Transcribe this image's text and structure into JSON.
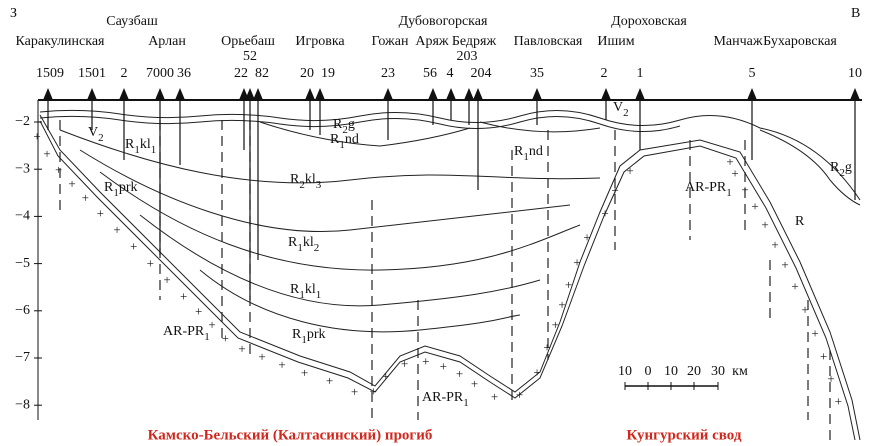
{
  "directions": {
    "west": "З",
    "east": "В"
  },
  "areas": [
    "Саузбаш",
    "Каракулинская",
    "Арлан",
    "Орьебаш",
    "Игровка",
    "Дубовогорская",
    "Гожан",
    "Аряж",
    "Бедряж",
    "Павловская",
    "Дороховская",
    "Ишим",
    "Манчаж",
    "Бухаровская"
  ],
  "wells": [
    "1509",
    "1501",
    "2",
    "7000",
    "36",
    "52",
    "22",
    "82",
    "20",
    "19",
    "23",
    "56",
    "4",
    "203",
    "204",
    "35",
    "2",
    "1",
    "5",
    "10"
  ],
  "depth_ticks": [
    "−2",
    "−3",
    "−4",
    "−5",
    "−6",
    "−7",
    "−8"
  ],
  "layers": [
    [
      "V",
      "2"
    ],
    [
      "R",
      "1",
      "kl",
      "1"
    ],
    [
      "R",
      "1",
      "prk"
    ],
    [
      "R",
      "2",
      "kl",
      "3"
    ],
    [
      "R",
      "1",
      "kl",
      "2"
    ],
    [
      "R",
      "1",
      "kl",
      "1"
    ],
    [
      "R",
      "1",
      "prk"
    ],
    [
      "AR-PR",
      "1"
    ],
    [
      "R",
      "1",
      "nd"
    ],
    [
      "R",
      "2",
      "g"
    ],
    [
      "V",
      "2"
    ],
    [
      "R",
      "1",
      "nd"
    ],
    [
      "AR-PR",
      "1"
    ],
    [
      "R",
      "2",
      "g"
    ],
    [
      "R"
    ],
    [
      "AR-PR",
      "1"
    ]
  ],
  "scale": [
    "10",
    "0",
    "10",
    "20",
    "30",
    "км"
  ],
  "regions": [
    "Камско-Бельский (Калтасинский) прогиб",
    "Кунгурский свод"
  ]
}
